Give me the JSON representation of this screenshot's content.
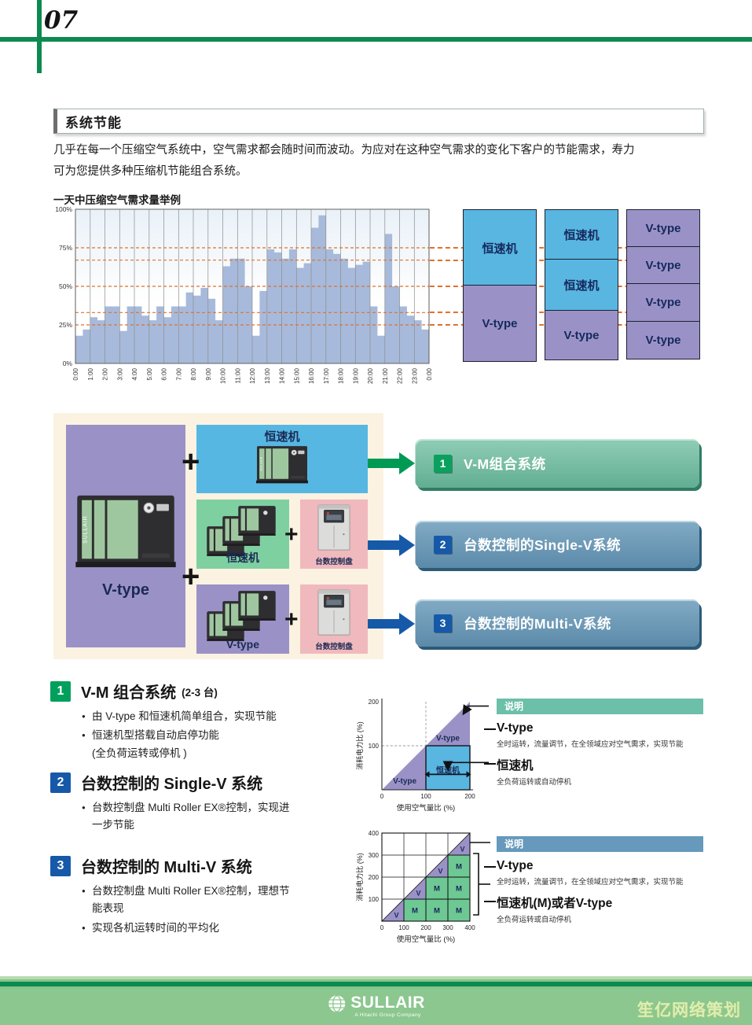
{
  "page_number": "07",
  "section_title": "系统节能",
  "intro_lines": [
    "几乎在每一个压缩空气系统中，空气需求都会随时间而波动。为应对在这种空气需求的变化下客户的节能需求，寿力",
    "可为您提供多种压缩机节能组合系统。"
  ],
  "demand_chart_title": "一天中压缩空气需求量举例",
  "chart_data": [
    {
      "id": "daily-air-demand",
      "type": "area-step",
      "title": "一天中压缩空气需求量举例",
      "x_tick_labels": [
        "0:00",
        "1:00",
        "2:00",
        "3:00",
        "4:00",
        "5:00",
        "6:00",
        "7:00",
        "8:00",
        "9:00",
        "10:00",
        "11:00",
        "12:00",
        "13:00",
        "14:00",
        "15:00",
        "16:00",
        "17:00",
        "18:00",
        "19:00",
        "20:00",
        "21:00",
        "22:00",
        "23:00",
        "0:00"
      ],
      "y_tick_labels": [
        "0%",
        "25%",
        "50%",
        "75%",
        "100%"
      ],
      "ylim": [
        0,
        100
      ],
      "interval_minutes": 30,
      "values_percent": [
        18,
        22,
        30,
        28,
        37,
        37,
        21,
        37,
        37,
        31,
        28,
        37,
        30,
        37,
        37,
        46,
        44,
        49,
        42,
        28,
        63,
        68,
        68,
        50,
        18,
        47,
        74,
        72,
        68,
        74,
        62,
        65,
        88,
        96,
        74,
        71,
        68,
        62,
        64,
        66,
        37,
        18,
        84,
        50,
        37,
        31,
        28,
        22
      ],
      "threshold_lines_percent": [
        25,
        33,
        50,
        67,
        75
      ],
      "bar_color": "#a7badb",
      "threshold_color": "#e0712c",
      "grid": "hourly-vertical"
    },
    {
      "id": "single-v-concept",
      "type": "area",
      "xlabel": "使用空气量比 (%)",
      "ylabel": "消耗电力比 (%)",
      "x_ticks": [
        0,
        100,
        200
      ],
      "y_ticks": [
        100,
        200
      ],
      "xlim": [
        0,
        200
      ],
      "ylim": [
        0,
        200
      ],
      "regions": [
        {
          "name": "V-type",
          "shape": "triangle",
          "points": [
            [
              0,
              0
            ],
            [
              200,
              200
            ],
            [
              200,
              0
            ]
          ],
          "color": "#9a92c6"
        },
        {
          "name": "恒速机",
          "shape": "rect",
          "x": [
            100,
            200
          ],
          "y": [
            0,
            100
          ],
          "color": "#58b6e0"
        }
      ],
      "labels": [
        {
          "text": "V-type",
          "x": 150,
          "y": 112
        },
        {
          "text": "恒速机",
          "x": 150,
          "y": 38
        },
        {
          "text": "V-type",
          "x": 52,
          "y": 14
        }
      ],
      "dashed_guides": {
        "x": 100,
        "y": 100
      }
    },
    {
      "id": "multi-v-concept",
      "type": "heatmap",
      "xlabel": "使用空气量比 (%)",
      "ylabel": "消耗电力比 (%)",
      "x_ticks": [
        0,
        100,
        200,
        300,
        400
      ],
      "y_ticks": [
        100,
        200,
        300,
        400
      ],
      "xlim": [
        0,
        400
      ],
      "ylim": [
        0,
        400
      ],
      "cell_colors": {
        "V": "#9a92c6",
        "M": "#6ec893"
      },
      "cells": [
        {
          "col": 1,
          "row": 1,
          "label": "V",
          "kind": "triangle"
        },
        {
          "col": 2,
          "row": 1,
          "label": "M",
          "kind": "fill"
        },
        {
          "col": 3,
          "row": 1,
          "label": "M",
          "kind": "fill"
        },
        {
          "col": 4,
          "row": 1,
          "label": "M",
          "kind": "fill"
        },
        {
          "col": 2,
          "row": 2,
          "label": "V",
          "kind": "triangle"
        },
        {
          "col": 3,
          "row": 2,
          "label": "M",
          "kind": "fill"
        },
        {
          "col": 4,
          "row": 2,
          "label": "M",
          "kind": "fill"
        },
        {
          "col": 3,
          "row": 3,
          "label": "V",
          "kind": "triangle"
        },
        {
          "col": 4,
          "row": 3,
          "label": "M",
          "kind": "fill"
        },
        {
          "col": 4,
          "row": 4,
          "label": "V",
          "kind": "triangle"
        }
      ]
    }
  ],
  "stack_columns": [
    {
      "segments": [
        {
          "label": "恒速机",
          "type": "constant",
          "height_percent": 50
        },
        {
          "label": "V-type",
          "type": "vtype",
          "height_percent": 50
        }
      ]
    },
    {
      "segments": [
        {
          "label": "恒速机",
          "type": "constant",
          "height_percent": 33
        },
        {
          "label": "恒速机",
          "type": "constant",
          "height_percent": 34
        },
        {
          "label": "V-type",
          "type": "vtype",
          "height_percent": 33
        }
      ]
    },
    {
      "segments": [
        {
          "label": "V-type",
          "type": "vtype",
          "height_percent": 25
        },
        {
          "label": "V-type",
          "type": "vtype",
          "height_percent": 25
        },
        {
          "label": "V-type",
          "type": "vtype",
          "height_percent": 25
        },
        {
          "label": "V-type",
          "type": "vtype",
          "height_percent": 25
        }
      ]
    }
  ],
  "combo": {
    "plus": "+",
    "left_panel_label": "V-type",
    "top_box_label": "恒速机",
    "green_box_label": "恒速机",
    "pink_box1_label": "台数控制盘",
    "purple_box_label": "V-type",
    "pink_box2_label": "台数控制盘"
  },
  "banners": [
    {
      "num": "1",
      "label": "V-M组合系统",
      "theme": "green"
    },
    {
      "num": "2",
      "label": "台数控制的Single-V系统",
      "theme": "blue"
    },
    {
      "num": "3",
      "label": "台数控制的Multi-V系统",
      "theme": "blue"
    }
  ],
  "sections": [
    {
      "num": "1",
      "theme": "green",
      "title": "V-M 组合系统",
      "title_suffix": "(2-3 台)",
      "bullets": [
        {
          "lines": [
            "由 V-type 和恒速机简单组合，实现节能"
          ]
        },
        {
          "lines": [
            "恒速机型搭载自动启停功能",
            "(全负荷运转或停机 )"
          ]
        }
      ]
    },
    {
      "num": "2",
      "theme": "blue",
      "title": "台数控制的 Single-V 系统",
      "title_suffix": "",
      "bullets": [
        {
          "lines": [
            "台数控制盘  Multi Roller EX®控制，实现进",
            "一步节能"
          ]
        }
      ]
    },
    {
      "num": "3",
      "theme": "blue",
      "title": "台数控制的 Multi-V 系统",
      "title_suffix": "",
      "bullets": [
        {
          "lines": [
            "台数控制盘 Multi Roller EX®控制，理想节",
            "能表现"
          ]
        },
        {
          "lines": [
            "实现各机运转时间的平均化"
          ]
        }
      ]
    }
  ],
  "legends": [
    {
      "header": "说明",
      "theme": "green",
      "items": [
        {
          "title": "V-type",
          "desc": "全时运转，流量调节，在全领域应对空气需求，实现节能"
        },
        {
          "title": "恒速机",
          "desc": "全负荷运转或自动停机"
        }
      ]
    },
    {
      "header": "说明",
      "theme": "blue",
      "items": [
        {
          "title": "V-type",
          "desc": "全时运转，流量调节，在全领域应对空气需求，实现节能"
        },
        {
          "title": "恒速机(M)或者V-type",
          "desc": "全负荷运转或自动停机"
        }
      ]
    }
  ],
  "footer": {
    "brand": "SULLAIR",
    "tagline": "A Hitachi Group Company",
    "watermark": "笙亿网络策划"
  },
  "colors": {
    "brand_green": "#0e8a50",
    "sky_blue": "#58b6e0",
    "purple": "#9a92c6",
    "mint_green": "#7fd0a0",
    "pink": "#f0b9bd",
    "cream": "#fcf2e2",
    "num_green": "#00a05c",
    "num_blue": "#1659a8",
    "arrow_green": "#009a55",
    "arrow_blue": "#1659a8",
    "footer_green": "#8bc78e"
  }
}
